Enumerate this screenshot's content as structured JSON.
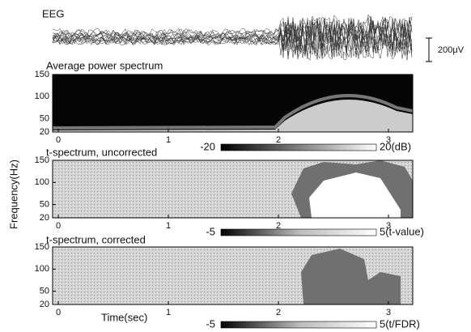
{
  "eeg_label": "EEG",
  "scale_bar_label": "200μV",
  "y_axis_label": "Frequency(Hz)",
  "x_axis_label": "Time(sec)",
  "panels": [
    {
      "title": "Average power spectrum",
      "yticks": [
        150,
        100,
        50,
        20
      ],
      "xticks": [
        0,
        1,
        2,
        3
      ],
      "colorbar": {
        "min": -20,
        "max": "20(dB)"
      }
    },
    {
      "title": "t-spectrum, uncorrected",
      "yticks": [
        150,
        100,
        50,
        20
      ],
      "xticks": [
        0,
        1,
        2,
        3
      ],
      "colorbar": {
        "min": -5,
        "max": "5(t-value)"
      }
    },
    {
      "title": "t-spectrum, corrected",
      "yticks": [
        150,
        100,
        50,
        20
      ],
      "xticks": [
        0,
        1,
        2,
        3
      ],
      "colorbar": {
        "min": -5,
        "max": "5(t/FDR)"
      }
    }
  ]
}
